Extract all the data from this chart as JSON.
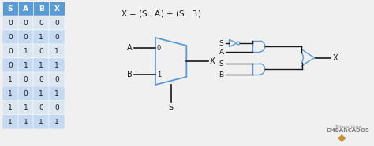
{
  "table_headers": [
    "S",
    "A",
    "B",
    "X"
  ],
  "table_data": [
    [
      0,
      0,
      0,
      0
    ],
    [
      0,
      0,
      1,
      0
    ],
    [
      0,
      1,
      0,
      1
    ],
    [
      0,
      1,
      1,
      1
    ],
    [
      1,
      0,
      0,
      0
    ],
    [
      1,
      0,
      1,
      1
    ],
    [
      1,
      1,
      0,
      0
    ],
    [
      1,
      1,
      1,
      1
    ]
  ],
  "header_bg": "#5b9bd5",
  "row_bg_even": "#dce6f1",
  "row_bg_odd": "#c5d9f1",
  "bg_color": "#f0f0f0",
  "gate_color": "#5b9bd5",
  "line_color": "#1a1a1a",
  "text_color": "#1a1a1a",
  "formula": "X = ($\\overline{\\mathrm{S}}$ . A) + (S . B)",
  "watermark_line1": "Thiago Lima",
  "watermark_line2": "EMBARCADOS",
  "diamond_color": "#c8902a"
}
